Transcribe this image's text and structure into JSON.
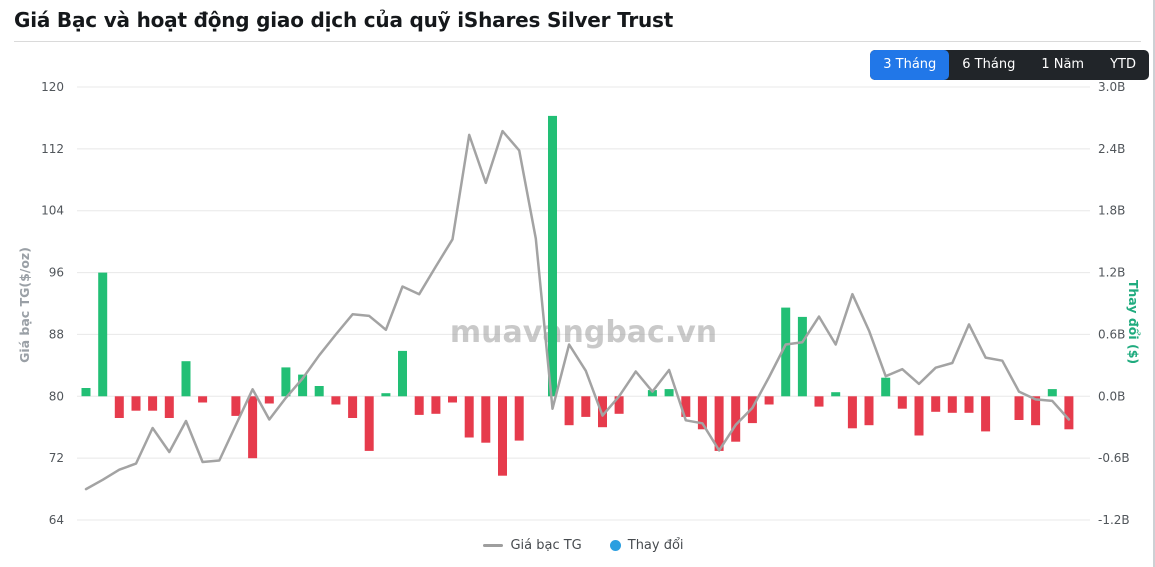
{
  "header": {
    "title": "Giá Bạc và hoạt động giao dịch của quỹ iShares Silver Trust"
  },
  "toolbar": {
    "buttons": [
      {
        "label": "3 Tháng",
        "active": true
      },
      {
        "label": "6 Tháng",
        "active": false
      },
      {
        "label": "1 Năm",
        "active": false
      },
      {
        "label": "YTD",
        "active": false
      }
    ]
  },
  "watermark": "muavangbac.vn",
  "legend": [
    {
      "label": "Giá bạc TG",
      "marker": "dash-icon",
      "color": "#9e9e9e"
    },
    {
      "label": "Thay đổi",
      "marker": "circle-icon",
      "color": "#2b9fe0"
    }
  ],
  "colors": {
    "bar_positive": "#22bf75",
    "bar_negative": "#e63b4c",
    "price_line": "#a3a3a3",
    "grid": "#e8e8e8",
    "tick_text": "#51565b",
    "left_axis_title": "#9aa0a6",
    "right_axis_title": "#1fab7e",
    "button_active": "#2177e8",
    "button_group_bg": "#212529",
    "watermark": "#9e9e9e"
  },
  "chart_data": {
    "type": "bar",
    "subtype": "combo line+bar, dual y-axes, no x-axis labels",
    "num_points": 60,
    "left_axis": {
      "label": "Giá bạc TG($/oz)",
      "ticks": [
        64,
        72,
        80,
        88,
        96,
        104,
        112,
        120
      ],
      "range": [
        64,
        120
      ],
      "grid": true
    },
    "right_axis": {
      "label": "Thay đổi ($)",
      "ticks": [
        "-1.2B",
        "-0.6B",
        "0.0B",
        "0.6B",
        "1.2B",
        "1.8B",
        "2.4B",
        "3.0B"
      ],
      "range": [
        -1.2,
        3.0
      ],
      "unit": "B"
    },
    "legend_position": "bottom-center",
    "series": [
      {
        "name": "Giá bạc TG",
        "type": "line",
        "axis": "left",
        "color": "#a3a3a3",
        "values": [
          68.0,
          69.2,
          70.5,
          71.3,
          75.9,
          72.8,
          76.8,
          71.5,
          71.7,
          76.3,
          80.9,
          77.0,
          79.8,
          82.3,
          85.3,
          88.0,
          90.6,
          90.4,
          88.6,
          94.2,
          93.2,
          96.8,
          100.3,
          113.8,
          107.6,
          114.3,
          111.8,
          100.4,
          78.4,
          86.7,
          83.3,
          77.5,
          80.0,
          83.2,
          80.6,
          83.4,
          76.9,
          76.5,
          73.0,
          76.3,
          78.5,
          82.5,
          86.7,
          87.0,
          90.3,
          86.7,
          93.2,
          88.5,
          82.6,
          83.5,
          81.6,
          83.7,
          84.3,
          89.3,
          85.0,
          84.6,
          80.6,
          79.6,
          79.4,
          77.0
        ]
      },
      {
        "name": "Thay đổi",
        "type": "bar",
        "axis": "right",
        "color_positive": "#22bf75",
        "color_negative": "#e63b4c",
        "values": [
          0.08,
          1.2,
          -0.21,
          -0.14,
          -0.14,
          -0.21,
          0.34,
          -0.06,
          0,
          -0.19,
          -0.6,
          -0.07,
          0.28,
          0.21,
          0.1,
          -0.08,
          -0.21,
          -0.53,
          0.03,
          0.44,
          -0.18,
          -0.17,
          -0.06,
          -0.4,
          -0.45,
          -0.77,
          -0.43,
          0,
          2.72,
          -0.28,
          -0.2,
          -0.3,
          -0.17,
          0,
          0.06,
          0.07,
          -0.2,
          -0.32,
          -0.53,
          -0.44,
          -0.26,
          -0.08,
          0.86,
          0.77,
          -0.1,
          0.04,
          -0.31,
          -0.28,
          0.18,
          -0.12,
          -0.38,
          -0.15,
          -0.16,
          -0.16,
          -0.34,
          0,
          -0.23,
          -0.28,
          0.07,
          -0.32
        ]
      }
    ],
    "title": "Giá Bạc và hoạt động giao dịch của quỹ iShares Silver Trust",
    "xlabel": "",
    "ylabel_left": "Giá bạc TG($/oz)",
    "ylabel_right": "Thay đổi ($)"
  }
}
